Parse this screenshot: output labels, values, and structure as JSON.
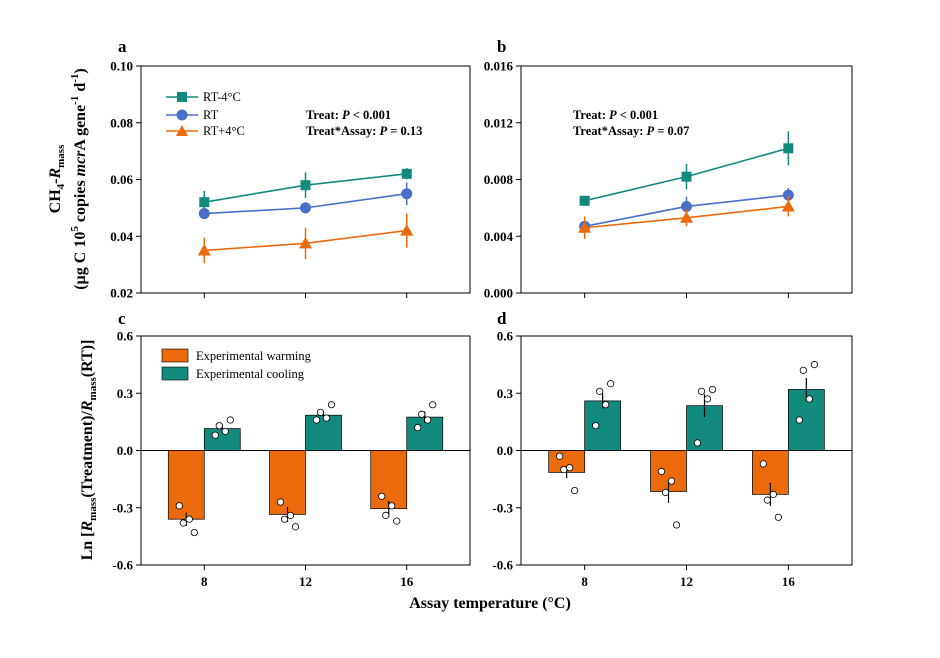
{
  "colors": {
    "cooling": "#138a7e",
    "rt": "#4a6fc9",
    "warming": "#ea6a0c"
  },
  "x_label": "Assay temperature (°C)",
  "y_top": {
    "line1_pre": "CH",
    "line1_sub": "4",
    "line1_mid": "-",
    "line1_R": "R",
    "line1_Rsub": "mass",
    "line2_a": "(µg C 10",
    "line2_sup5": "5",
    "line2_b": " copies ",
    "line2_gene": "mcr",
    "line2_A": "A",
    "line2_c": " gene",
    "line2_sup": "-1",
    "line2_d": " d",
    "line2_e": ")"
  },
  "y_bottom": {
    "pre": "Ln [",
    "R1": "R",
    "R1sub": "mass",
    "mid": "(Treatment)/",
    "R2": "R",
    "R2sub": "mass",
    "post": "(RT)]"
  },
  "chart_data": [
    {
      "panel": "a",
      "type": "line",
      "x": [
        8,
        12,
        16
      ],
      "xlim": [
        5.5,
        18.5
      ],
      "ylim": [
        0.02,
        0.1
      ],
      "yticks": [
        "0.02",
        "0.04",
        "0.06",
        "0.08",
        "0.10"
      ],
      "series": [
        {
          "name": "RT-4°C",
          "marker": "square",
          "color": "#138a7e",
          "values": [
            0.052,
            0.058,
            0.062
          ],
          "err": [
            0.004,
            0.0045,
            0.002
          ]
        },
        {
          "name": "RT",
          "marker": "circle",
          "color": "#4a6fc9",
          "values": [
            0.048,
            0.05,
            0.055
          ],
          "err": [
            0.0015,
            0.002,
            0.004
          ]
        },
        {
          "name": "RT+4°C",
          "marker": "triangle",
          "color": "#ea6a0c",
          "values": [
            0.035,
            0.0375,
            0.042
          ],
          "err": [
            0.0045,
            0.0055,
            0.006
          ]
        }
      ],
      "stats": {
        "l1_a": "Treat: ",
        "l1_p": "P",
        "l1_b": " < 0.001",
        "l2_a": "Treat*Assay: ",
        "l2_p": "P",
        "l2_b": " = 0.13"
      }
    },
    {
      "panel": "b",
      "type": "line",
      "x": [
        8,
        12,
        16
      ],
      "xlim": [
        5.5,
        18.5
      ],
      "ylim": [
        0,
        0.016
      ],
      "yticks": [
        "0.000",
        "0.004",
        "0.008",
        "0.012",
        "0.016"
      ],
      "series": [
        {
          "name": "RT-4°C",
          "marker": "square",
          "color": "#138a7e",
          "values": [
            0.0065,
            0.0082,
            0.0102
          ],
          "err": [
            0.0003,
            0.0009,
            0.0012
          ]
        },
        {
          "name": "RT",
          "marker": "circle",
          "color": "#4a6fc9",
          "values": [
            0.0047,
            0.0061,
            0.0069
          ],
          "err": [
            0.0002,
            0.0007,
            0.0005
          ]
        },
        {
          "name": "RT+4°C",
          "marker": "triangle",
          "color": "#ea6a0c",
          "values": [
            0.0046,
            0.0053,
            0.0061
          ],
          "err": [
            0.0008,
            0.0006,
            0.0007
          ]
        }
      ],
      "stats": {
        "l1_a": "Treat: ",
        "l1_p": "P",
        "l1_b": " < 0.001",
        "l2_a": "Treat*Assay: ",
        "l2_p": "P",
        "l2_b": " = 0.07"
      }
    },
    {
      "panel": "c",
      "type": "bar",
      "categories": [
        "8",
        "12",
        "16"
      ],
      "xlim": [
        5.5,
        18.5
      ],
      "ylim": [
        -0.6,
        0.6
      ],
      "yticks": [
        "-0.6",
        "-0.3",
        "0.0",
        "0.3",
        "0.6"
      ],
      "series": [
        {
          "name": "Experimental warming",
          "color": "#ea6a0c",
          "values": [
            -0.36,
            -0.335,
            -0.305
          ],
          "err": [
            0.035,
            0.04,
            0.04
          ],
          "points": [
            [
              -0.29,
              -0.36,
              -0.38,
              -0.43
            ],
            [
              -0.27,
              -0.34,
              -0.36,
              -0.4
            ],
            [
              -0.24,
              -0.29,
              -0.34,
              -0.37
            ]
          ]
        },
        {
          "name": "Experimental cooling",
          "color": "#138a7e",
          "values": [
            0.115,
            0.185,
            0.175
          ],
          "err": [
            0.02,
            0.02,
            0.03
          ],
          "points": [
            [
              0.08,
              0.1,
              0.13,
              0.16
            ],
            [
              0.16,
              0.17,
              0.2,
              0.24
            ],
            [
              0.12,
              0.16,
              0.19,
              0.24
            ]
          ]
        }
      ]
    },
    {
      "panel": "d",
      "type": "bar",
      "categories": [
        "8",
        "12",
        "16"
      ],
      "xlim": [
        5.5,
        18.5
      ],
      "ylim": [
        -0.6,
        0.6
      ],
      "yticks": [
        "-0.6",
        "-0.3",
        "0.0",
        "0.3",
        "0.6"
      ],
      "series": [
        {
          "name": "Experimental warming",
          "color": "#ea6a0c",
          "values": [
            -0.115,
            -0.215,
            -0.23
          ],
          "err": [
            0.03,
            0.06,
            0.06
          ],
          "points": [
            [
              -0.03,
              -0.09,
              -0.1,
              -0.21
            ],
            [
              -0.11,
              -0.16,
              -0.22,
              -0.39
            ],
            [
              -0.07,
              -0.23,
              -0.26,
              -0.35
            ]
          ]
        },
        {
          "name": "Experimental cooling",
          "color": "#138a7e",
          "values": [
            0.26,
            0.235,
            0.32
          ],
          "err": [
            0.04,
            0.06,
            0.06
          ],
          "points": [
            [
              0.13,
              0.24,
              0.31,
              0.35
            ],
            [
              0.04,
              0.27,
              0.31,
              0.32
            ],
            [
              0.16,
              0.27,
              0.42,
              0.45
            ]
          ]
        }
      ]
    }
  ]
}
